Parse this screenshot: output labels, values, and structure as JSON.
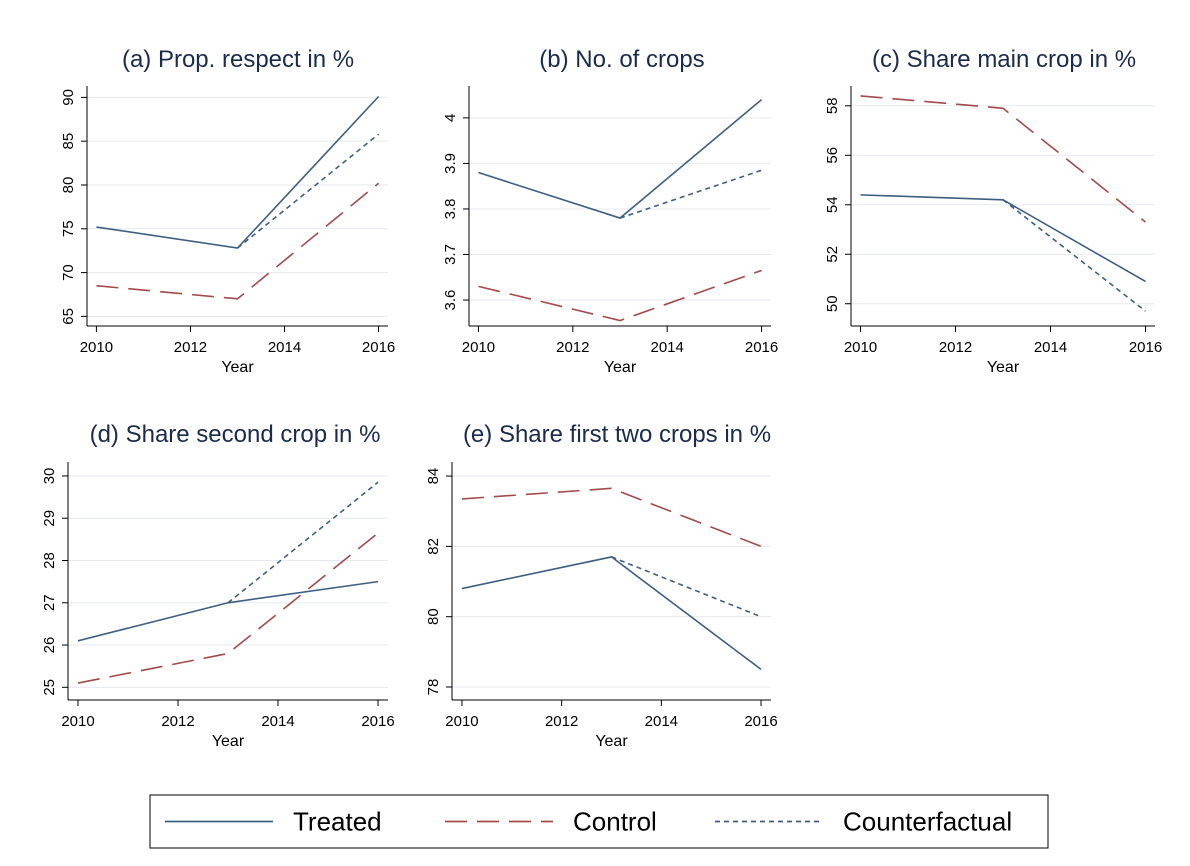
{
  "legend": {
    "position": "bottom",
    "series": [
      {
        "name": "Treated",
        "color": "#3e5f80",
        "dash": "solid"
      },
      {
        "name": "Control",
        "color": "#a34a4a",
        "dash": "long-dash"
      },
      {
        "name": "Counterfactual",
        "color": "#3e5f80",
        "dash": "short-dash"
      }
    ]
  },
  "chart_data": [
    {
      "type": "line",
      "title": "(a) Prop. respect  in %",
      "x_label": "Year",
      "grid": true,
      "x": [
        2010,
        2013,
        2016
      ],
      "xlim": [
        2009.8,
        2016.2
      ],
      "xticks": [
        2010,
        2012,
        2014,
        2016
      ],
      "ylim": [
        63.9,
        91.3
      ],
      "yticks": [
        65,
        70,
        75,
        80,
        85,
        90
      ],
      "series": [
        {
          "values": [
            75.2,
            72.8,
            90.1
          ]
        },
        {
          "values": [
            68.5,
            67.0,
            80.2
          ]
        },
        {
          "values": [
            null,
            72.8,
            85.8
          ]
        }
      ]
    },
    {
      "type": "line",
      "title": "(b) No. of crops",
      "x_label": "Year",
      "grid": true,
      "x": [
        2010,
        2013,
        2016
      ],
      "xlim": [
        2009.8,
        2016.2
      ],
      "xticks": [
        2010,
        2012,
        2014,
        2016
      ],
      "ylim": [
        3.543,
        4.07
      ],
      "yticks": [
        3.6,
        3.7,
        3.8,
        3.9,
        4
      ],
      "series": [
        {
          "values": [
            3.88,
            3.78,
            4.04
          ]
        },
        {
          "values": [
            3.63,
            3.555,
            3.665
          ]
        },
        {
          "values": [
            null,
            3.78,
            3.885
          ]
        }
      ]
    },
    {
      "type": "line",
      "title": "(c) Share main crop in %",
      "x_label": "Year",
      "grid": true,
      "x": [
        2010,
        2013,
        2016
      ],
      "xlim": [
        2009.8,
        2016.2
      ],
      "xticks": [
        2010,
        2012,
        2014,
        2016
      ],
      "ylim": [
        49.1,
        58.8
      ],
      "yticks": [
        50,
        52,
        54,
        56,
        58
      ],
      "series": [
        {
          "values": [
            54.4,
            54.2,
            50.9
          ]
        },
        {
          "values": [
            58.4,
            57.9,
            53.3
          ]
        },
        {
          "values": [
            null,
            54.2,
            49.7
          ]
        }
      ]
    },
    {
      "type": "line",
      "title": "(d) Share second crop in %",
      "x_label": "Year",
      "grid": true,
      "x": [
        2010,
        2013,
        2016
      ],
      "xlim": [
        2009.8,
        2016.2
      ],
      "xticks": [
        2010,
        2012,
        2014,
        2016
      ],
      "ylim": [
        24.7,
        30.33
      ],
      "yticks": [
        25,
        26,
        27,
        28,
        29,
        30
      ],
      "series": [
        {
          "values": [
            26.1,
            27.0,
            27.5
          ]
        },
        {
          "values": [
            25.1,
            25.8,
            28.65
          ]
        },
        {
          "values": [
            null,
            27.0,
            29.85
          ]
        }
      ]
    },
    {
      "type": "line",
      "title": "(e) Share first two crops in %",
      "x_label": "Year",
      "grid": true,
      "x": [
        2010,
        2013,
        2016
      ],
      "xlim": [
        2009.8,
        2016.2
      ],
      "xticks": [
        2010,
        2012,
        2014,
        2016
      ],
      "ylim": [
        77.63,
        84.4
      ],
      "yticks": [
        78,
        80,
        82,
        84
      ],
      "series": [
        {
          "values": [
            80.8,
            81.7,
            78.5
          ]
        },
        {
          "values": [
            83.35,
            83.65,
            82.0
          ]
        },
        {
          "values": [
            null,
            81.7,
            80.0
          ]
        }
      ]
    }
  ]
}
